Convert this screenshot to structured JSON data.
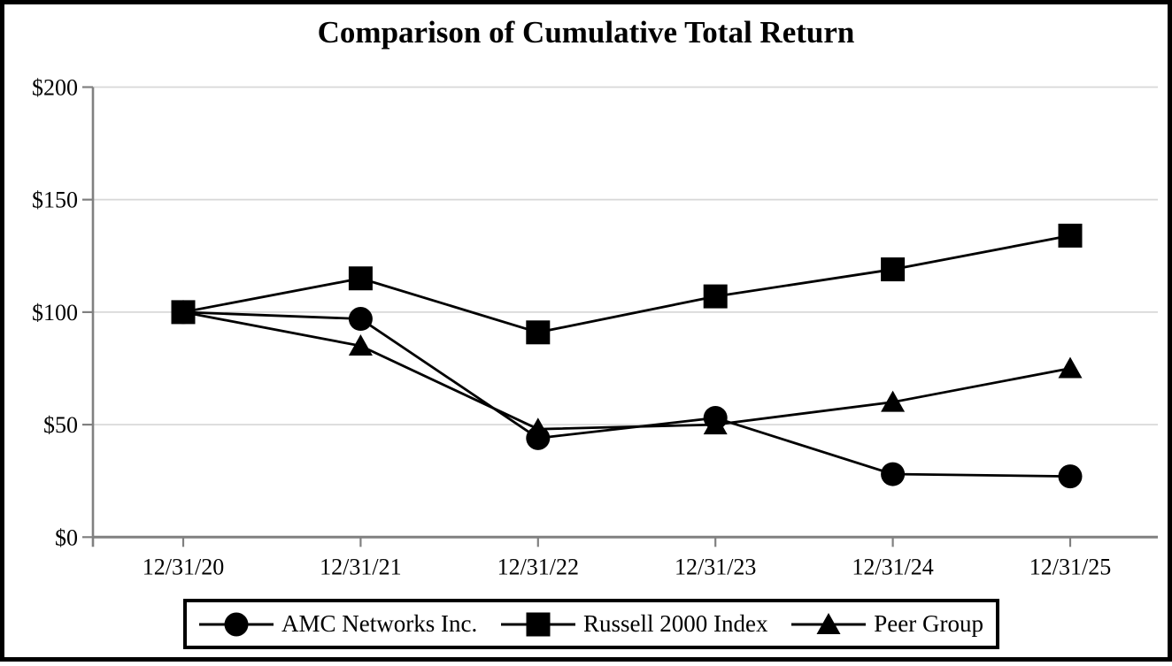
{
  "page": {
    "background_color": "#ffffff",
    "frame_border_color": "#000000"
  },
  "chart_data": {
    "type": "line",
    "title": "Comparison of Cumulative Total Return",
    "x_labels": [
      "12/31/20",
      "12/31/21",
      "12/31/22",
      "12/31/23",
      "12/31/24",
      "12/31/25"
    ],
    "y_tick_labels": [
      "$0",
      "$50",
      "$100",
      "$150",
      "$200"
    ],
    "y_tick_values": [
      0,
      50,
      100,
      150,
      200
    ],
    "ylim": [
      0,
      200
    ],
    "grid": "horizontal-only",
    "legend_position": "bottom",
    "axis_color": "#808080",
    "gridline_color": "#d9d9d9",
    "series_color": "#000000",
    "series": [
      {
        "name": "AMC Networks Inc.",
        "marker": "circle",
        "values": [
          100,
          97,
          44,
          53,
          28,
          27
        ]
      },
      {
        "name": "Russell 2000 Index",
        "marker": "square",
        "values": [
          100,
          115,
          91,
          107,
          119,
          134
        ]
      },
      {
        "name": "Peer Group",
        "marker": "triangle",
        "values": [
          100,
          85,
          48,
          50,
          60,
          75
        ]
      }
    ]
  }
}
